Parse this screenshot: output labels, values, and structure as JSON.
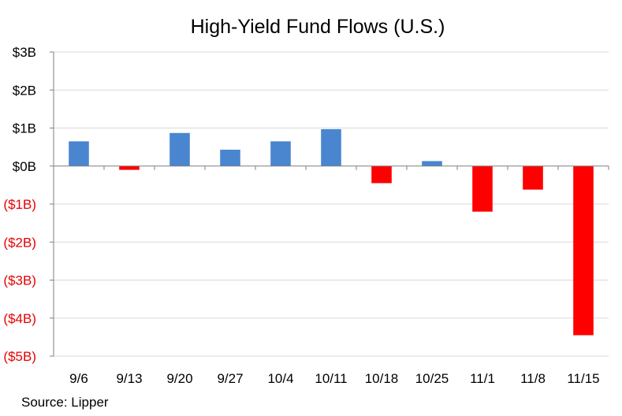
{
  "chart_data": {
    "type": "bar",
    "title": "High-Yield Fund Flows (U.S.)",
    "source": "Source: Lipper",
    "categories": [
      "9/6",
      "9/13",
      "9/20",
      "9/27",
      "10/4",
      "10/11",
      "10/18",
      "10/25",
      "11/1",
      "11/8",
      "11/15"
    ],
    "values": [
      0.65,
      -0.1,
      0.87,
      0.43,
      0.65,
      0.97,
      -0.45,
      0.13,
      -1.2,
      -0.62,
      -4.45
    ],
    "unit": "$ billions",
    "ylim": [
      -5,
      3
    ],
    "yticks": [
      {
        "value": 3,
        "label": "$3B"
      },
      {
        "value": 2,
        "label": "$2B"
      },
      {
        "value": 1,
        "label": "$1B"
      },
      {
        "value": 0,
        "label": "$0B"
      },
      {
        "value": -1,
        "label": "($1B)"
      },
      {
        "value": -2,
        "label": "($2B)"
      },
      {
        "value": -3,
        "label": "($3B)"
      },
      {
        "value": -4,
        "label": "($4B)"
      },
      {
        "value": -5,
        "label": "($5B)"
      }
    ],
    "grid": true,
    "colors": {
      "positive": "#4a86d0",
      "negative": "#ff0000",
      "negative_label": "#e60000",
      "text": "#000000",
      "grid": "#d9d9d9",
      "axis": "#7f7f7f"
    }
  }
}
